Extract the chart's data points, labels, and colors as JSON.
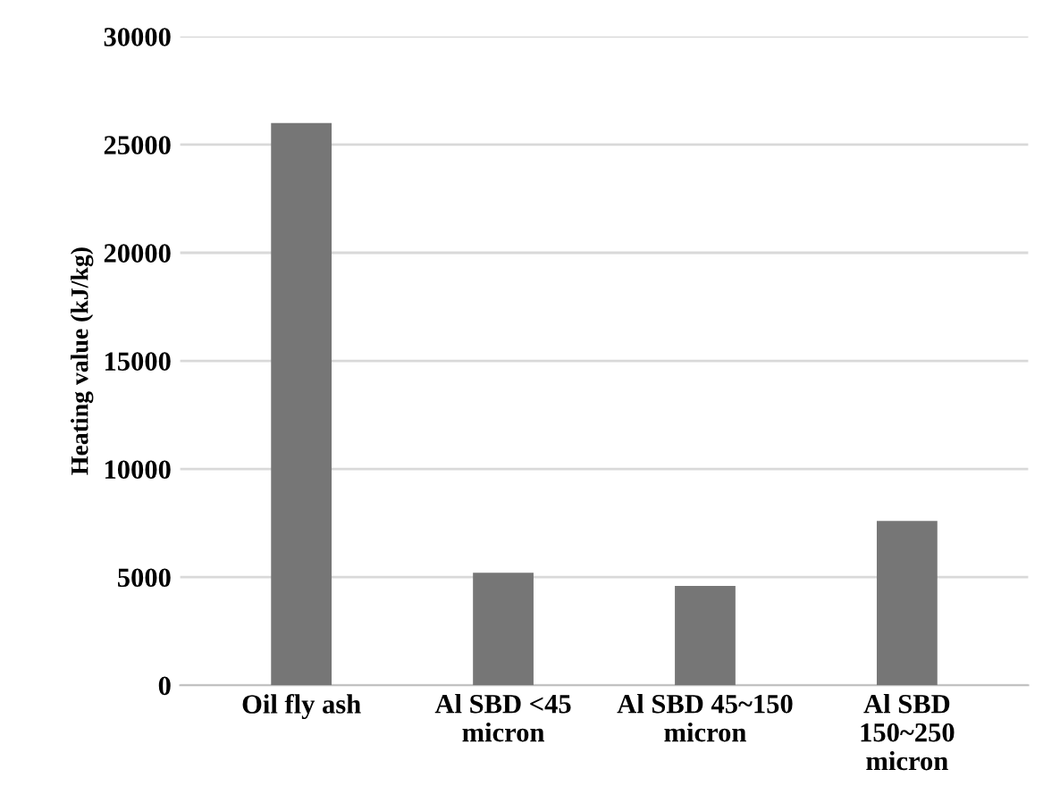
{
  "chart_data": {
    "type": "bar",
    "ylabel": "Heating value (kJ/kg)",
    "categories": [
      "Oil fly ash",
      "Al SBD <45\nmicron",
      "Al SBD 45~150\nmicron",
      "Al SBD\n150~250\nmicron"
    ],
    "values": [
      26000,
      5200,
      4600,
      7600
    ],
    "color": "#767676",
    "ylim": [
      0,
      30000
    ],
    "yticks": [
      0,
      5000,
      10000,
      15000,
      20000,
      25000,
      30000
    ],
    "grid": "y"
  }
}
